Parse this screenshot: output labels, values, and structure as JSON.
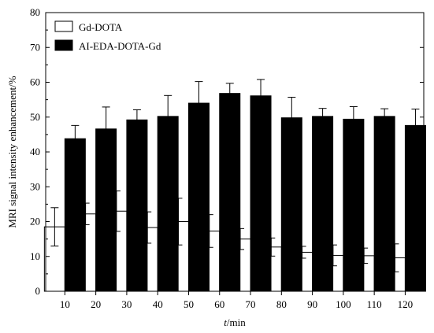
{
  "chart_data": {
    "type": "bar",
    "xlabel": "t/min",
    "xlabel_parts": {
      "italic": "t",
      "rest": "/min"
    },
    "ylabel": "MRI signal intensity enhancement/%",
    "ylim": [
      0,
      80
    ],
    "yticks": [
      0,
      10,
      20,
      30,
      40,
      50,
      60,
      70,
      80
    ],
    "categories": [
      "10",
      "20",
      "30",
      "40",
      "50",
      "60",
      "70",
      "80",
      "90",
      "100",
      "110",
      "120"
    ],
    "legend": {
      "position": "top-left"
    },
    "grid": false,
    "series": [
      {
        "name": "Gd-DOTA",
        "fill": "#ffffff",
        "values": [
          18.5,
          22.2,
          23.0,
          18.3,
          20.0,
          17.3,
          15.0,
          12.7,
          11.2,
          10.3,
          10.2,
          9.6
        ],
        "errors": [
          5.5,
          3.1,
          5.8,
          4.5,
          6.7,
          4.7,
          3.0,
          2.6,
          1.7,
          3.0,
          2.2,
          4.0
        ]
      },
      {
        "name": "AI-EDA-DOTA-Gd",
        "fill": "#000000",
        "values": [
          43.8,
          46.6,
          49.2,
          50.2,
          54.0,
          56.8,
          56.1,
          49.8,
          50.2,
          49.4,
          50.2,
          47.6
        ],
        "errors": [
          3.8,
          6.3,
          2.9,
          6.0,
          6.2,
          2.9,
          4.7,
          5.9,
          2.3,
          3.6,
          2.2,
          4.7
        ]
      }
    ]
  }
}
